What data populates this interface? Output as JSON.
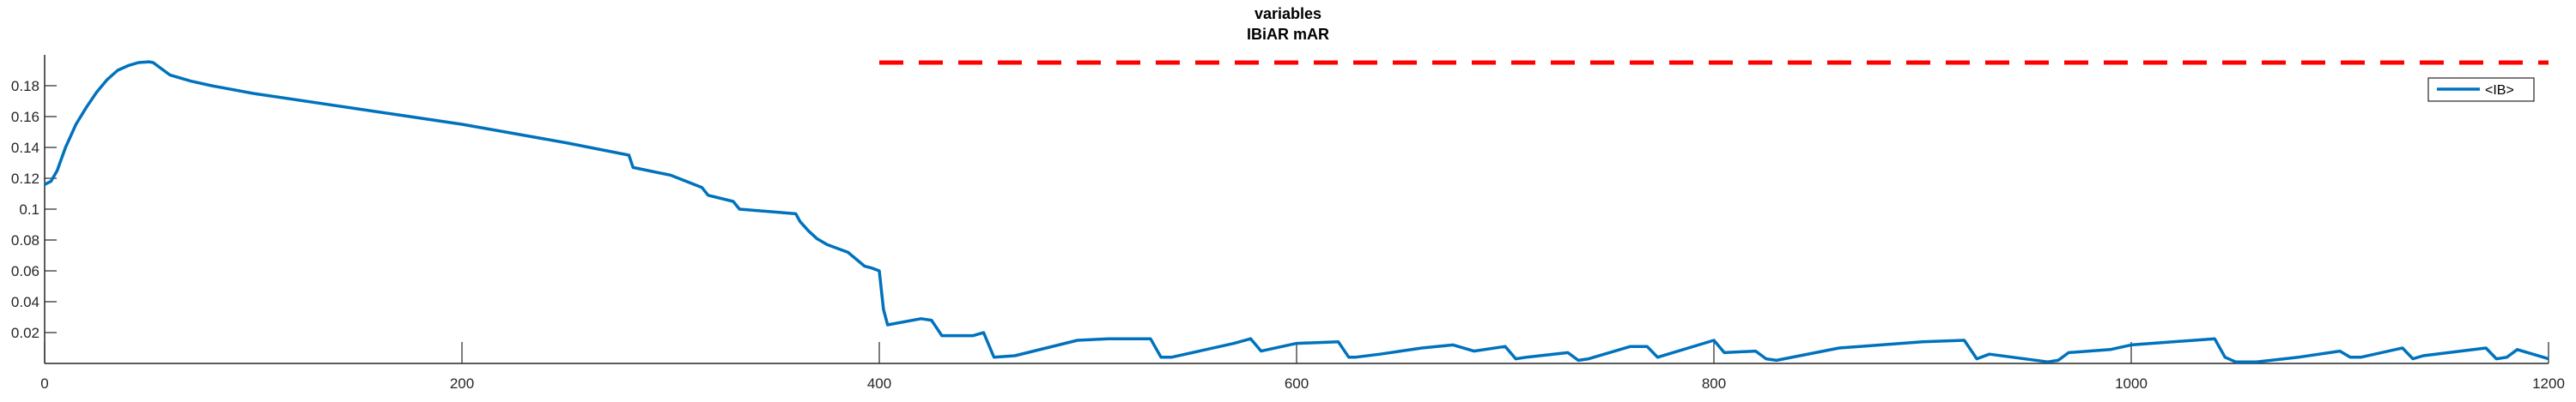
{
  "chart_data": {
    "type": "line",
    "title": [
      "variables",
      "IBiAR mAR"
    ],
    "xlabel": "",
    "ylabel": "",
    "xlim": [
      0,
      1200
    ],
    "ylim": [
      0,
      0.2
    ],
    "xticks": [
      0,
      200,
      400,
      600,
      800,
      1000,
      1200
    ],
    "xtick_labels": [
      "0",
      "200",
      "400",
      "600",
      "800",
      "1000",
      "1200"
    ],
    "yticks": [
      0.02,
      0.04,
      0.06,
      0.08,
      0.1,
      0.12,
      0.14,
      0.16,
      0.18
    ],
    "ytick_labels": [
      "0.02",
      "0.04",
      "0.06",
      "0.08",
      "0.1",
      "0.12",
      "0.14",
      "0.16",
      "0.18"
    ],
    "grid": false,
    "legend": {
      "location": "top-right",
      "entries": [
        "<IB>"
      ]
    },
    "colors": {
      "series": "#0072BD",
      "reference": "#FF0000"
    },
    "series": [
      {
        "name": "<IB>",
        "style": "solid",
        "x": [
          0,
          3,
          6,
          10,
          15,
          20,
          25,
          30,
          35,
          40,
          45,
          50,
          52,
          55,
          60,
          70,
          80,
          100,
          150,
          200,
          250,
          280,
          282,
          300,
          315,
          318,
          330,
          333,
          360,
          362,
          366,
          370,
          375,
          385,
          393,
          396,
          400,
          402,
          404,
          420,
          425,
          430,
          445,
          450,
          455,
          465,
          495,
          510,
          530,
          535,
          540,
          570,
          578,
          583,
          600,
          620,
          625,
          628,
          640,
          660,
          675,
          685,
          700,
          705,
          710,
          730,
          735,
          740,
          760,
          768,
          773,
          800,
          805,
          820,
          825,
          830,
          860,
          900,
          920,
          926,
          932,
          960,
          965,
          970,
          990,
          1000,
          1040,
          1045,
          1050,
          1060,
          1080,
          1100,
          1105,
          1110,
          1130,
          1135,
          1140,
          1170,
          1175,
          1180,
          1185,
          1200
        ],
        "y": [
          0.116,
          0.118,
          0.125,
          0.14,
          0.155,
          0.166,
          0.176,
          0.184,
          0.19,
          0.193,
          0.195,
          0.1955,
          0.195,
          0.192,
          0.187,
          0.183,
          0.18,
          0.175,
          0.165,
          0.155,
          0.143,
          0.135,
          0.127,
          0.122,
          0.114,
          0.109,
          0.105,
          0.1,
          0.097,
          0.092,
          0.086,
          0.081,
          0.077,
          0.072,
          0.063,
          0.062,
          0.06,
          0.035,
          0.025,
          0.029,
          0.028,
          0.018,
          0.018,
          0.02,
          0.004,
          0.005,
          0.015,
          0.016,
          0.016,
          0.004,
          0.004,
          0.013,
          0.016,
          0.008,
          0.013,
          0.014,
          0.004,
          0.004,
          0.006,
          0.01,
          0.012,
          0.008,
          0.011,
          0.003,
          0.004,
          0.007,
          0.002,
          0.003,
          0.011,
          0.011,
          0.004,
          0.015,
          0.007,
          0.008,
          0.003,
          0.002,
          0.01,
          0.014,
          0.015,
          0.003,
          0.006,
          0.001,
          0.002,
          0.007,
          0.009,
          0.012,
          0.016,
          0.004,
          0.001,
          0.001,
          0.004,
          0.008,
          0.004,
          0.004,
          0.01,
          0.003,
          0.005,
          0.01,
          0.003,
          0.004,
          0.009,
          0.003
        ]
      },
      {
        "style": "dashed",
        "x": [
          400,
          1200
        ],
        "y": [
          0.195,
          0.195
        ]
      }
    ]
  }
}
